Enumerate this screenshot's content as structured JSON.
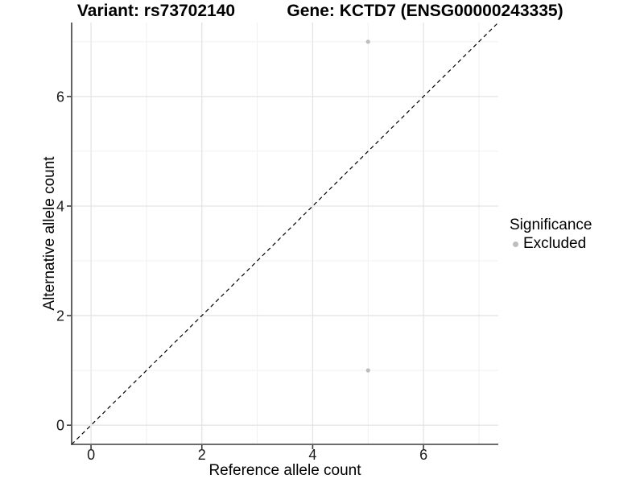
{
  "colors": {
    "background": "#ffffff",
    "point": "#bdbdbd",
    "grid_major": "#e4e4e4",
    "grid_minor": "#f0f0f0",
    "axis_line": "#3c3c3c",
    "identity_line": "#000000",
    "tick_text": "#1a1a1a"
  },
  "chart_data": {
    "type": "scatter",
    "titles": [
      "Variant: rs73702140",
      "Gene: KCTD7 (ENSG00000243335)"
    ],
    "xlabel": "Reference allele count",
    "ylabel": "Alternative allele count",
    "xlim": [
      -0.35,
      7.35
    ],
    "ylim": [
      -0.35,
      7.35
    ],
    "x_ticks": [
      0,
      2,
      4,
      6
    ],
    "y_ticks": [
      0,
      2,
      4,
      6
    ],
    "x_minor_ticks": [
      1,
      3,
      5,
      7
    ],
    "y_minor_ticks": [
      1,
      3,
      5,
      7
    ],
    "grid": "on",
    "identity_line": {
      "slope": 1,
      "intercept": 0,
      "style": "dashed"
    },
    "series": [
      {
        "name": "Excluded",
        "color": "#bdbdbd",
        "points": [
          [
            5,
            7
          ],
          [
            5,
            1
          ]
        ]
      }
    ],
    "legend": {
      "title": "Significance",
      "position": "right",
      "entries": [
        {
          "label": "Excluded",
          "color": "#bdbdbd"
        }
      ]
    }
  }
}
